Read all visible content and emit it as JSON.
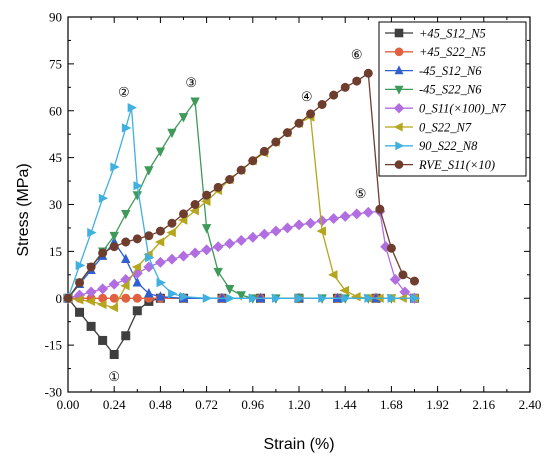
{
  "chart_data": {
    "type": "line",
    "xlabel": "Strain (%)",
    "ylabel": "Stress (MPa)",
    "xlim": [
      0,
      2.4
    ],
    "ylim": [
      -30,
      90
    ],
    "xticks": [
      "0.00",
      "0.24",
      "0.48",
      "0.72",
      "0.96",
      "1.20",
      "1.44",
      "1.68",
      "1.92",
      "2.16",
      "2.40"
    ],
    "yticks": [
      "-30",
      "-15",
      "0",
      "15",
      "30",
      "45",
      "60",
      "75",
      "90"
    ],
    "legend_position": "top-right",
    "grid": false,
    "annotations": [
      "①",
      "②",
      "③",
      "④",
      "⑤",
      "⑥"
    ],
    "series": [
      {
        "name": "+45_S12_N5",
        "color": "#3f3f3f",
        "marker": "square",
        "x": [
          0.0,
          0.06,
          0.12,
          0.18,
          0.24,
          0.3,
          0.36,
          0.42,
          0.48,
          0.6,
          0.8,
          1.0,
          1.2,
          1.4,
          1.6,
          1.8
        ],
        "y": [
          0,
          -4.5,
          -9,
          -13.5,
          -18,
          -12,
          -4,
          -1,
          0,
          0,
          0,
          0,
          0,
          0,
          0,
          0
        ]
      },
      {
        "name": "+45_S22_N5",
        "color": "#e0603f",
        "marker": "circle",
        "x": [
          0.0,
          0.06,
          0.12,
          0.18,
          0.24,
          0.3,
          0.36,
          0.42,
          0.48,
          0.6,
          0.8,
          1.0,
          1.2,
          1.4,
          1.6,
          1.8
        ],
        "y": [
          0,
          0,
          0,
          0,
          0,
          0,
          0,
          0,
          0,
          0,
          0,
          0,
          0,
          0,
          0,
          0
        ]
      },
      {
        "name": "-45_S12_N6",
        "color": "#2f5fd0",
        "marker": "triangle-up",
        "x": [
          0.0,
          0.06,
          0.12,
          0.18,
          0.24,
          0.3,
          0.36,
          0.42,
          0.48,
          0.6,
          0.8,
          1.0,
          1.2,
          1.4,
          1.6,
          1.8
        ],
        "y": [
          0,
          4.5,
          9,
          13.5,
          18,
          12.5,
          5,
          1.5,
          0.5,
          0,
          0,
          0,
          0,
          0,
          0,
          0
        ]
      },
      {
        "name": "-45_S22_N6",
        "color": "#3f9a5a",
        "marker": "triangle-down",
        "x": [
          0.0,
          0.06,
          0.12,
          0.18,
          0.24,
          0.3,
          0.36,
          0.42,
          0.48,
          0.54,
          0.6,
          0.66,
          0.72,
          0.78,
          0.84,
          0.9,
          0.96,
          1.08,
          1.2,
          1.32,
          1.44,
          1.56,
          1.68,
          1.8
        ],
        "y": [
          0,
          5,
          10,
          15,
          20,
          27,
          33,
          41,
          47,
          53,
          58,
          63,
          22.5,
          8.5,
          3,
          1,
          0,
          0,
          0,
          0,
          0,
          0,
          0,
          0
        ]
      },
      {
        "name": "0_S11(×100)_N7",
        "color": "#b06ee0",
        "marker": "diamond",
        "x": [
          0.0,
          0.06,
          0.12,
          0.18,
          0.24,
          0.3,
          0.36,
          0.42,
          0.48,
          0.54,
          0.6,
          0.66,
          0.72,
          0.78,
          0.84,
          0.9,
          0.96,
          1.02,
          1.08,
          1.14,
          1.2,
          1.26,
          1.32,
          1.38,
          1.44,
          1.5,
          1.56,
          1.62,
          1.65,
          1.7,
          1.75,
          1.8
        ],
        "y": [
          0,
          1,
          2,
          3,
          4.5,
          6,
          8,
          10,
          11.5,
          12.5,
          13.5,
          14.5,
          15.5,
          16.5,
          17.5,
          18.5,
          19.5,
          20.5,
          21.5,
          22.5,
          23.5,
          24,
          24.8,
          25.5,
          26.2,
          27,
          27.5,
          27.8,
          16.5,
          6,
          2,
          0
        ]
      },
      {
        "name": "0_S22_N7",
        "color": "#b5a51f",
        "marker": "triangle-left",
        "x": [
          0.0,
          0.06,
          0.12,
          0.18,
          0.24,
          0.3,
          0.36,
          0.42,
          0.48,
          0.54,
          0.6,
          0.66,
          0.72,
          0.78,
          0.84,
          0.9,
          0.96,
          1.02,
          1.08,
          1.14,
          1.2,
          1.26,
          1.32,
          1.38,
          1.44,
          1.5,
          1.56,
          1.62,
          1.68,
          1.74,
          1.8
        ],
        "y": [
          0,
          -0.5,
          -1,
          -2,
          -3,
          4,
          10,
          14,
          18,
          21,
          25,
          28,
          31,
          34.5,
          38,
          41,
          44,
          46.5,
          50,
          53,
          56,
          58,
          21.5,
          7.5,
          2.5,
          0.5,
          0,
          0,
          0,
          0,
          0
        ]
      },
      {
        "name": "90_S22_N8",
        "color": "#3fb0e0",
        "marker": "triangle-right",
        "x": [
          0.0,
          0.06,
          0.12,
          0.18,
          0.24,
          0.3,
          0.33,
          0.36,
          0.42,
          0.48,
          0.54,
          0.6,
          0.72,
          0.84,
          0.96,
          1.08,
          1.2,
          1.32,
          1.44,
          1.56,
          1.68,
          1.8
        ],
        "y": [
          0,
          10.5,
          21,
          32,
          42,
          54.5,
          61,
          36,
          13,
          5,
          1.5,
          0.5,
          0,
          0,
          0,
          0,
          0,
          0,
          0,
          0,
          0,
          0
        ]
      },
      {
        "name": "RVE_S11(×10)",
        "color": "#6e3d2e",
        "marker": "circle",
        "x": [
          0.0,
          0.06,
          0.12,
          0.18,
          0.24,
          0.3,
          0.36,
          0.42,
          0.48,
          0.54,
          0.6,
          0.66,
          0.72,
          0.78,
          0.84,
          0.9,
          0.96,
          1.02,
          1.08,
          1.14,
          1.2,
          1.26,
          1.32,
          1.38,
          1.44,
          1.5,
          1.56,
          1.62,
          1.68,
          1.74,
          1.8
        ],
        "y": [
          0,
          5,
          10,
          14.5,
          16.5,
          18,
          19,
          20,
          21.5,
          24,
          27,
          30,
          33,
          35.5,
          38,
          41,
          44,
          47,
          50,
          53,
          56,
          59,
          62,
          65,
          67.5,
          69.5,
          72,
          28.5,
          16,
          7.5,
          5.5
        ]
      }
    ]
  }
}
